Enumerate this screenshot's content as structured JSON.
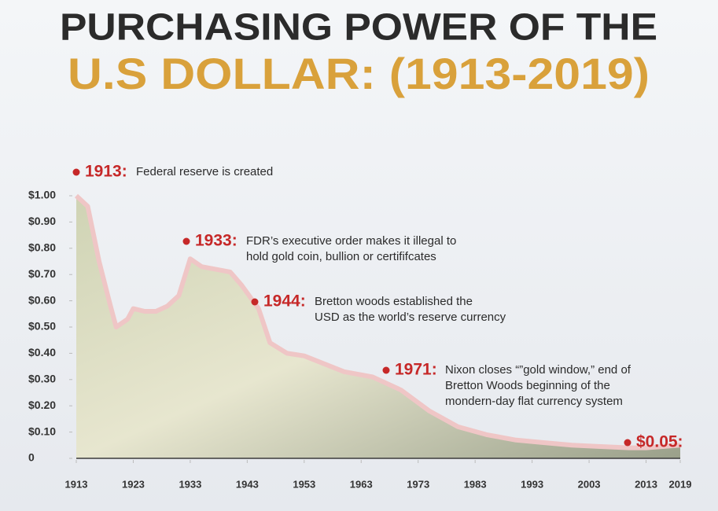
{
  "chart_data": {
    "type": "area",
    "title": [
      "PURCHASING POWER OF THE",
      "U.S DOLLAR: (1913-2019)"
    ],
    "x": [
      1913,
      1915,
      1917,
      1919,
      1920,
      1922,
      1923,
      1925,
      1927,
      1929,
      1931,
      1933,
      1935,
      1940,
      1942,
      1945,
      1947,
      1950,
      1953,
      1960,
      1965,
      1970,
      1975,
      1980,
      1985,
      1990,
      1995,
      2000,
      2005,
      2010,
      2013,
      2019
    ],
    "values": [
      1.0,
      0.96,
      0.75,
      0.58,
      0.5,
      0.53,
      0.57,
      0.56,
      0.56,
      0.58,
      0.62,
      0.76,
      0.73,
      0.71,
      0.66,
      0.57,
      0.44,
      0.4,
      0.39,
      0.33,
      0.31,
      0.26,
      0.18,
      0.12,
      0.09,
      0.07,
      0.06,
      0.05,
      0.045,
      0.04,
      0.04,
      0.05
    ],
    "color": "#efc6c6",
    "xlim": [
      1913,
      2019
    ],
    "xticks": [
      1913,
      1923,
      1933,
      1943,
      1953,
      1963,
      1973,
      1983,
      1993,
      2003,
      2013,
      2019
    ],
    "ylim": [
      0,
      1
    ],
    "yticks": [
      0,
      {
        "value": 0.1,
        "label": "$0.10"
      },
      {
        "value": 0.2,
        "label": "$0.20"
      },
      {
        "value": 0.3,
        "label": "$0.30"
      },
      {
        "value": 0.4,
        "label": "$0.40"
      },
      {
        "value": 0.5,
        "label": "$0.50"
      },
      {
        "value": 0.6,
        "label": "$0.60"
      },
      {
        "value": 0.7,
        "label": "$0.70"
      },
      {
        "value": 0.8,
        "label": "$0.80"
      },
      {
        "value": 0.9,
        "label": "$0.90"
      },
      {
        "value": 1,
        "label": "$1.00"
      }
    ],
    "annotations": [
      {
        "label": "1913:",
        "text": [
          "Federal reserve is created"
        ]
      },
      {
        "label": "1933:",
        "text": [
          "FDR’s executive order makes it illegal to",
          "hold gold coin, bullion or certififcates"
        ]
      },
      {
        "label": "1944:",
        "text": [
          "Bretton woods established the",
          "USD as the world’s reserve currency"
        ]
      },
      {
        "label": "1971:",
        "text": [
          "Nixon closes “”gold window,” end of",
          "Bretton Woods beginning of the",
          "mondern-day flat currency system"
        ]
      },
      {
        "label": "$0.05:"
      }
    ]
  }
}
